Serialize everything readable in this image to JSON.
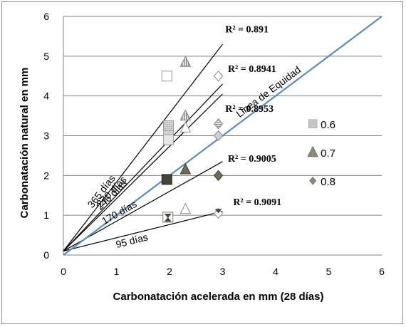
{
  "chart_data": {
    "type": "scatter",
    "xlabel": "Carbonatación acelerada en mm (28 días)",
    "ylabel": "Carbonatación natural en mm",
    "xlim": [
      0,
      6
    ],
    "ylim": [
      0,
      6
    ],
    "xticks": [
      "0",
      "1",
      "2",
      "3",
      "4",
      "5",
      "6"
    ],
    "yticks": [
      "0",
      "1",
      "2",
      "3",
      "4",
      "5",
      "6"
    ],
    "grid": "horizontal",
    "legend_position": "right",
    "series": [
      {
        "name": "0.6",
        "marker": "square",
        "points": [
          {
            "x": 1.95,
            "y": 4.5
          },
          {
            "x": 1.98,
            "y": 3.25
          },
          {
            "x": 1.98,
            "y": 3.0
          },
          {
            "x": 1.98,
            "y": 2.9
          },
          {
            "x": 1.95,
            "y": 1.9
          },
          {
            "x": 1.97,
            "y": 0.95
          }
        ]
      },
      {
        "name": "0.7",
        "marker": "triangle",
        "points": [
          {
            "x": 2.3,
            "y": 4.85
          },
          {
            "x": 2.3,
            "y": 3.5
          },
          {
            "x": 2.3,
            "y": 3.2
          },
          {
            "x": 2.3,
            "y": 2.15
          },
          {
            "x": 2.3,
            "y": 1.15
          }
        ]
      },
      {
        "name": "0.8",
        "marker": "diamond",
        "points": [
          {
            "x": 2.92,
            "y": 4.5
          },
          {
            "x": 2.92,
            "y": 3.3
          },
          {
            "x": 2.92,
            "y": 3.0
          },
          {
            "x": 2.92,
            "y": 2.0
          },
          {
            "x": 2.92,
            "y": 1.05
          }
        ]
      }
    ],
    "equity_line": {
      "label": "Linea de Equidad",
      "x": [
        0,
        6
      ],
      "y": [
        0,
        6
      ]
    },
    "trend_lines": [
      {
        "label": "365 días",
        "r2": "R² = 0.891",
        "x": [
          0,
          3
        ],
        "y": [
          0.1,
          5.3
        ]
      },
      {
        "label": "270 días",
        "r2": "R² = 0.8941",
        "x": [
          0,
          3
        ],
        "y": [
          0.1,
          4.3
        ]
      },
      {
        "label": "246 días",
        "r2": "R² = 0.8953",
        "x": [
          0,
          3
        ],
        "y": [
          0.1,
          4.05
        ]
      },
      {
        "label": "170 días",
        "r2": "R² = 0.9005",
        "x": [
          0,
          3
        ],
        "y": [
          0.1,
          2.35
        ]
      },
      {
        "label": "95 días",
        "r2": "R² = 0.9091",
        "x": [
          0,
          3
        ],
        "y": [
          0.1,
          1.1
        ]
      }
    ],
    "colors": {
      "equity_line": "#5b8bbf",
      "trend_line": "#000000",
      "grid": "#808080",
      "square_fill": "#c6c6c6",
      "triangle_fill": "#8a8a80",
      "diamond_fill": "#8a8a80",
      "dark_marker": "#454535"
    }
  }
}
